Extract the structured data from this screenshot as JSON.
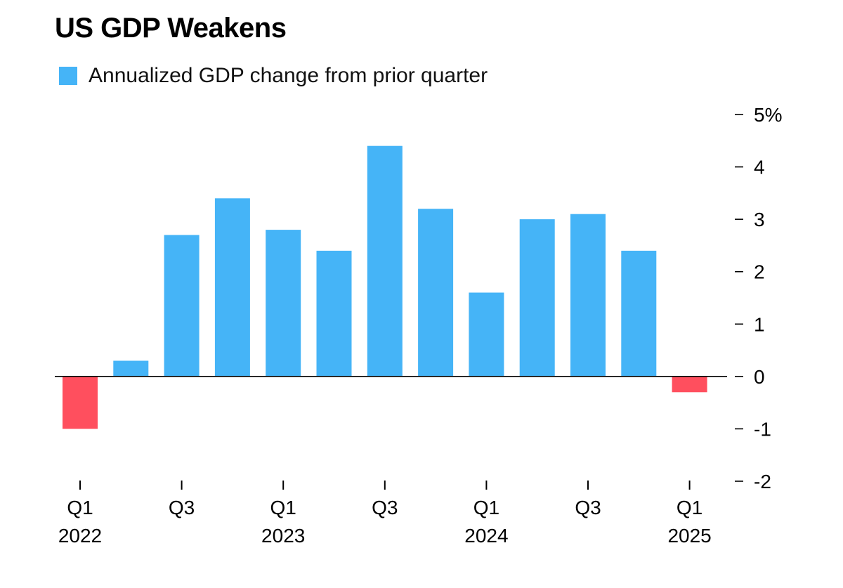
{
  "colors": {
    "positive": "#45b4f7",
    "negative": "#ff4f5e",
    "axis": "#000000"
  },
  "chart_data": {
    "type": "bar",
    "title": "US GDP Weakens",
    "xlabel": "",
    "ylabel": "",
    "legend_position": "top-left",
    "grid": false,
    "ylim": [
      -2,
      5
    ],
    "y_ticks": [
      {
        "value": 5,
        "label": "5%"
      },
      {
        "value": 4,
        "label": "4"
      },
      {
        "value": 3,
        "label": "3"
      },
      {
        "value": 2,
        "label": "2"
      },
      {
        "value": 1,
        "label": "1"
      },
      {
        "value": 0,
        "label": "0"
      },
      {
        "value": -1,
        "label": "-1"
      },
      {
        "value": -2,
        "label": "-2"
      }
    ],
    "categories": [
      "Q1 2022",
      "Q2 2022",
      "Q3 2022",
      "Q4 2022",
      "Q1 2023",
      "Q2 2023",
      "Q3 2023",
      "Q4 2023",
      "Q1 2024",
      "Q2 2024",
      "Q3 2024",
      "Q4 2024",
      "Q1 2025"
    ],
    "x_tick_labels": [
      {
        "index": 0,
        "lines": [
          "Q1",
          "2022"
        ]
      },
      {
        "index": 2,
        "lines": [
          "Q3",
          ""
        ]
      },
      {
        "index": 4,
        "lines": [
          "Q1",
          "2023"
        ]
      },
      {
        "index": 6,
        "lines": [
          "Q3",
          ""
        ]
      },
      {
        "index": 8,
        "lines": [
          "Q1",
          "2024"
        ]
      },
      {
        "index": 10,
        "lines": [
          "Q3",
          ""
        ]
      },
      {
        "index": 12,
        "lines": [
          "Q1",
          "2025"
        ]
      }
    ],
    "series": [
      {
        "name": "Annualized GDP change from prior quarter",
        "values": [
          -1.0,
          0.3,
          2.7,
          3.4,
          2.8,
          2.4,
          4.4,
          3.2,
          1.6,
          3.0,
          3.1,
          2.4,
          -0.3
        ]
      }
    ]
  }
}
